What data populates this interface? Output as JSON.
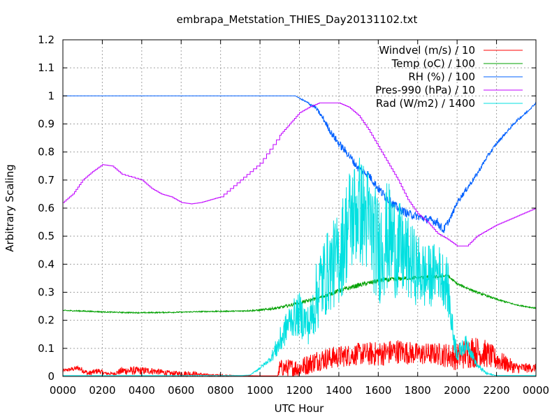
{
  "chart_data": {
    "type": "line",
    "title": "embrapa_Metstation_THIES_Day20131102.txt",
    "xlabel": "UTC Hour",
    "ylabel": "Arbitrary Scaling",
    "xlim": [
      0,
      24
    ],
    "ylim": [
      0,
      1.2
    ],
    "x_ticks": [
      "0000",
      "0200",
      "0400",
      "0600",
      "0800",
      "1000",
      "1200",
      "1400",
      "1600",
      "1800",
      "2000",
      "2200",
      "0000"
    ],
    "y_ticks": [
      "0",
      "0.1",
      "0.2",
      "0.3",
      "0.4",
      "0.5",
      "0.6",
      "0.7",
      "0.8",
      "0.9",
      "1",
      "1.1",
      "1.2"
    ],
    "grid": true,
    "legend_position": "top-right",
    "series": [
      {
        "name": "Windvel (m/s) / 10",
        "color": "#ff0000",
        "style": "noisy",
        "points": [
          [
            0,
            0.02
          ],
          [
            0.8,
            0.03
          ],
          [
            1.3,
            0.01
          ],
          [
            1.8,
            0.02
          ],
          [
            2.2,
            0.01
          ],
          [
            2.6,
            0.01
          ],
          [
            3,
            0.02
          ],
          [
            3.8,
            0.02
          ],
          [
            4.5,
            0.02
          ],
          [
            5.5,
            0.01
          ],
          [
            6.5,
            0.01
          ],
          [
            7.2,
            0.005
          ],
          [
            9,
            0.003
          ],
          [
            10,
            0.002
          ],
          [
            10.9,
            0.002
          ],
          [
            11,
            0.03
          ],
          [
            12,
            0.03
          ],
          [
            13,
            0.06
          ],
          [
            14,
            0.07
          ],
          [
            15,
            0.08
          ],
          [
            16,
            0.08
          ],
          [
            17,
            0.09
          ],
          [
            18,
            0.08
          ],
          [
            19,
            0.08
          ],
          [
            20,
            0.07
          ],
          [
            20.7,
            0.09
          ],
          [
            21.5,
            0.08
          ],
          [
            22,
            0.06
          ],
          [
            23,
            0.03
          ],
          [
            24,
            0.03
          ]
        ],
        "noise": [
          0.005,
          0.01,
          0.01,
          0.01,
          0.005,
          0.005,
          0.015,
          0.015,
          0.012,
          0.01,
          0.01,
          0.005,
          0.0,
          0.0,
          0.0,
          0.03,
          0.035,
          0.04,
          0.04,
          0.04,
          0.045,
          0.045,
          0.04,
          0.04,
          0.05,
          0.06,
          0.05,
          0.04,
          0.02,
          0.015
        ]
      },
      {
        "name": "Temp (oC) / 100",
        "color": "#00a000",
        "style": "smooth",
        "points": [
          [
            0,
            0.235
          ],
          [
            1,
            0.233
          ],
          [
            2,
            0.23
          ],
          [
            3,
            0.228
          ],
          [
            4,
            0.227
          ],
          [
            5,
            0.228
          ],
          [
            6,
            0.229
          ],
          [
            7,
            0.231
          ],
          [
            8,
            0.232
          ],
          [
            9,
            0.233
          ],
          [
            10,
            0.236
          ],
          [
            11,
            0.245
          ],
          [
            12,
            0.262
          ],
          [
            13,
            0.28
          ],
          [
            14,
            0.305
          ],
          [
            15,
            0.325
          ],
          [
            16,
            0.34
          ],
          [
            17,
            0.348
          ],
          [
            18,
            0.352
          ],
          [
            19,
            0.355
          ],
          [
            19.5,
            0.36
          ],
          [
            20,
            0.33
          ],
          [
            21,
            0.3
          ],
          [
            22,
            0.275
          ],
          [
            23,
            0.255
          ],
          [
            24,
            0.243
          ]
        ],
        "noise": [
          0.002,
          0.002,
          0.002,
          0.002,
          0.002,
          0.002,
          0.002,
          0.002,
          0.002,
          0.002,
          0.003,
          0.005,
          0.006,
          0.006,
          0.008,
          0.008,
          0.008,
          0.008,
          0.006,
          0.006,
          0.006,
          0.004,
          0.004,
          0.003,
          0.002,
          0.002
        ]
      },
      {
        "name": "RH (%) / 100",
        "color": "#0060ff",
        "style": "smooth",
        "points": [
          [
            0,
            1
          ],
          [
            11.8,
            1
          ],
          [
            12.3,
            0.98
          ],
          [
            12.8,
            0.96
          ],
          [
            13.2,
            0.92
          ],
          [
            13.6,
            0.87
          ],
          [
            14,
            0.83
          ],
          [
            14.5,
            0.79
          ],
          [
            15,
            0.74
          ],
          [
            15.5,
            0.72
          ],
          [
            16,
            0.67
          ],
          [
            16.5,
            0.63
          ],
          [
            17,
            0.6
          ],
          [
            17.5,
            0.58
          ],
          [
            18,
            0.57
          ],
          [
            18.5,
            0.56
          ],
          [
            19,
            0.55
          ],
          [
            19.3,
            0.52
          ],
          [
            19.7,
            0.57
          ],
          [
            20,
            0.62
          ],
          [
            20.5,
            0.67
          ],
          [
            21,
            0.72
          ],
          [
            21.5,
            0.78
          ],
          [
            22,
            0.83
          ],
          [
            22.5,
            0.87
          ],
          [
            23,
            0.91
          ],
          [
            23.5,
            0.94
          ],
          [
            24,
            0.975
          ]
        ],
        "noise": [
          0,
          0,
          0.004,
          0.006,
          0.01,
          0.012,
          0.014,
          0.014,
          0.014,
          0.014,
          0.016,
          0.016,
          0.015,
          0.015,
          0.014,
          0.014,
          0.016,
          0.015,
          0.01,
          0.01,
          0.01,
          0.008,
          0.008,
          0.006,
          0.005,
          0.005,
          0.004,
          0.003
        ]
      },
      {
        "name": "Pres-990 (hPa) / 10",
        "color": "#c000ff",
        "style": "stepped",
        "points": [
          [
            0,
            0.62
          ],
          [
            0.5,
            0.65
          ],
          [
            1,
            0.7
          ],
          [
            1.5,
            0.73
          ],
          [
            2,
            0.755
          ],
          [
            2.5,
            0.75
          ],
          [
            3,
            0.72
          ],
          [
            4,
            0.7
          ],
          [
            4.5,
            0.67
          ],
          [
            5,
            0.65
          ],
          [
            5.5,
            0.64
          ],
          [
            6,
            0.62
          ],
          [
            6.5,
            0.615
          ],
          [
            7,
            0.62
          ],
          [
            7.5,
            0.63
          ],
          [
            8,
            0.64
          ],
          [
            9,
            0.7
          ],
          [
            10,
            0.76
          ],
          [
            11,
            0.86
          ],
          [
            11.5,
            0.9
          ],
          [
            12,
            0.94
          ],
          [
            12.5,
            0.96
          ],
          [
            13,
            0.975
          ],
          [
            14,
            0.975
          ],
          [
            14.5,
            0.96
          ],
          [
            15,
            0.93
          ],
          [
            15.5,
            0.88
          ],
          [
            16,
            0.82
          ],
          [
            16.5,
            0.76
          ],
          [
            17,
            0.7
          ],
          [
            17.5,
            0.63
          ],
          [
            18,
            0.58
          ],
          [
            18.5,
            0.55
          ],
          [
            19,
            0.51
          ],
          [
            19.5,
            0.49
          ],
          [
            20,
            0.465
          ],
          [
            20.5,
            0.465
          ],
          [
            21,
            0.5
          ],
          [
            21.5,
            0.52
          ],
          [
            22,
            0.54
          ],
          [
            22.5,
            0.555
          ],
          [
            23,
            0.57
          ],
          [
            23.5,
            0.585
          ],
          [
            24,
            0.6
          ]
        ],
        "noise": []
      },
      {
        "name": "Rad (W/m2) / 1400",
        "color": "#00e0e0",
        "style": "noisy",
        "points": [
          [
            0,
            0.003
          ],
          [
            9,
            0.003
          ],
          [
            9.5,
            0.005
          ],
          [
            10,
            0.03
          ],
          [
            10.5,
            0.06
          ],
          [
            11,
            0.12
          ],
          [
            11.5,
            0.2
          ],
          [
            12,
            0.22
          ],
          [
            12.5,
            0.18
          ],
          [
            13,
            0.32
          ],
          [
            13.5,
            0.38
          ],
          [
            14,
            0.42
          ],
          [
            14.5,
            0.55
          ],
          [
            15,
            0.6
          ],
          [
            15.5,
            0.55
          ],
          [
            16,
            0.45
          ],
          [
            16.5,
            0.5
          ],
          [
            17,
            0.45
          ],
          [
            17.5,
            0.42
          ],
          [
            18,
            0.38
          ],
          [
            18.5,
            0.35
          ],
          [
            19,
            0.38
          ],
          [
            19.5,
            0.33
          ],
          [
            19.8,
            0.15
          ],
          [
            20,
            0.08
          ],
          [
            20.5,
            0.12
          ],
          [
            21,
            0.04
          ],
          [
            21.5,
            0.01
          ],
          [
            22,
            0.003
          ],
          [
            24,
            0.003
          ]
        ],
        "noise": [
          0,
          0,
          0,
          0.005,
          0.01,
          0.05,
          0.06,
          0.08,
          0.07,
          0.15,
          0.15,
          0.17,
          0.2,
          0.2,
          0.2,
          0.2,
          0.2,
          0.18,
          0.15,
          0.13,
          0.12,
          0.1,
          0.1,
          0.05,
          0.03,
          0.03,
          0.01,
          0.005,
          0,
          0
        ]
      }
    ]
  }
}
